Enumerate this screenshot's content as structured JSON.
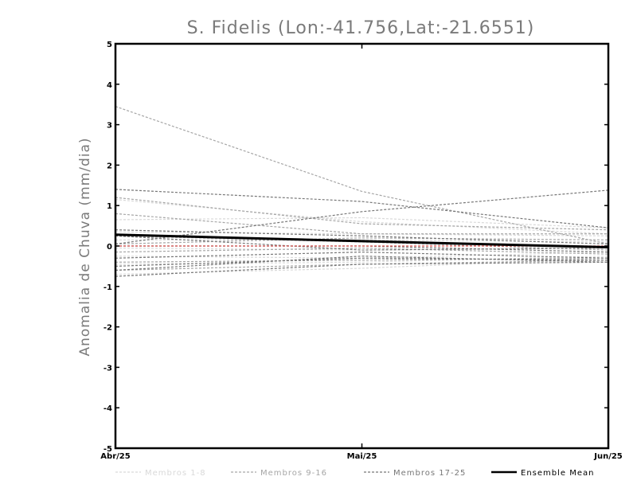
{
  "chart_data": {
    "type": "line",
    "title": "S. Fidelis (Lon:-41.756,Lat:-21.6551)",
    "ylabel": "Anomalia de Chuva (mm/dia)",
    "xlabel": "",
    "categories": [
      "Abr/25",
      "Mai/25",
      "Jun/25"
    ],
    "ylim": [
      -5,
      5
    ],
    "yticks": [
      5,
      4,
      3,
      2,
      1,
      0,
      -1,
      -2,
      -3,
      -4,
      -5
    ],
    "zero_line_color": "#d9534f",
    "legend": {
      "placement": "bottom",
      "entries": [
        {
          "label": "Membros 1-8",
          "color": "#d9d9d9",
          "style": "dashed"
        },
        {
          "label": "Membros 9-16",
          "color": "#a6a6a6",
          "style": "dashed"
        },
        {
          "label": "Membros 17-25",
          "color": "#777777",
          "style": "dashed"
        },
        {
          "label": "Ensemble Mean",
          "color": "#000000",
          "style": "solid"
        }
      ]
    },
    "series": [
      {
        "group": 0,
        "values": [
          1.15,
          0.6,
          0.3
        ]
      },
      {
        "group": 0,
        "values": [
          0.65,
          0.7,
          0.45
        ]
      },
      {
        "group": 0,
        "values": [
          0.35,
          0.3,
          0.25
        ]
      },
      {
        "group": 0,
        "values": [
          0.15,
          0.15,
          0.1
        ]
      },
      {
        "group": 0,
        "values": [
          -0.05,
          -0.1,
          -0.05
        ]
      },
      {
        "group": 0,
        "values": [
          -0.25,
          -0.3,
          -0.15
        ]
      },
      {
        "group": 0,
        "values": [
          -0.45,
          -0.4,
          -0.25
        ]
      },
      {
        "group": 0,
        "values": [
          -0.7,
          -0.55,
          -0.3
        ]
      },
      {
        "group": 1,
        "values": [
          3.45,
          1.35,
          0.05
        ]
      },
      {
        "group": 1,
        "values": [
          1.2,
          0.55,
          0.4
        ]
      },
      {
        "group": 1,
        "values": [
          0.8,
          0.3,
          0.3
        ]
      },
      {
        "group": 1,
        "values": [
          0.25,
          0.1,
          -0.1
        ]
      },
      {
        "group": 1,
        "values": [
          0.05,
          0.2,
          0.15
        ]
      },
      {
        "group": 1,
        "values": [
          -0.15,
          -0.05,
          -0.2
        ]
      },
      {
        "group": 1,
        "values": [
          -0.4,
          -0.35,
          -0.3
        ]
      },
      {
        "group": 1,
        "values": [
          -0.6,
          -0.45,
          -0.35
        ]
      },
      {
        "group": 2,
        "values": [
          1.4,
          1.1,
          0.45
        ]
      },
      {
        "group": 2,
        "values": [
          0.05,
          0.85,
          1.38
        ]
      },
      {
        "group": 2,
        "values": [
          0.4,
          0.25,
          0.05
        ]
      },
      {
        "group": 2,
        "values": [
          0.25,
          -0.1,
          -0.05
        ]
      },
      {
        "group": 2,
        "values": [
          0.0,
          0.0,
          -0.15
        ]
      },
      {
        "group": 2,
        "values": [
          -0.3,
          -0.15,
          -0.3
        ]
      },
      {
        "group": 2,
        "values": [
          -0.5,
          -0.3,
          -0.35
        ]
      },
      {
        "group": 2,
        "values": [
          -0.6,
          -0.25,
          -0.4
        ]
      },
      {
        "group": 2,
        "values": [
          -0.75,
          -0.45,
          -0.4
        ]
      },
      {
        "group": 3,
        "name": "Ensemble Mean",
        "values": [
          0.28,
          0.12,
          -0.03
        ]
      }
    ]
  }
}
